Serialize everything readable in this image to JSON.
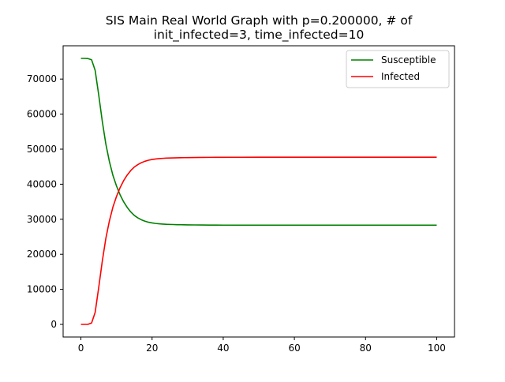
{
  "chart_data": {
    "type": "line",
    "title_line1": "SIS Main Real World Graph with p=0.200000, # of",
    "title_line2": "init_infected=3, time_infected=10",
    "xlabel": "",
    "ylabel": "",
    "xlim": [
      -5,
      105
    ],
    "ylim": [
      -3600,
      79500
    ],
    "xticks": [
      0,
      20,
      40,
      60,
      80,
      100
    ],
    "yticks": [
      0,
      10000,
      20000,
      30000,
      40000,
      50000,
      60000,
      70000
    ],
    "grid": false,
    "legend_position": "top-right",
    "x": [
      0,
      1,
      2,
      3,
      4,
      5,
      6,
      7,
      8,
      9,
      10,
      11,
      12,
      13,
      14,
      15,
      16,
      17,
      18,
      19,
      20,
      21,
      22,
      23,
      24,
      25,
      26,
      27,
      28,
      29,
      30,
      32,
      34,
      36,
      38,
      40,
      45,
      50,
      55,
      60,
      65,
      70,
      75,
      80,
      85,
      90,
      95,
      100
    ],
    "series": [
      {
        "name": "Susceptible",
        "color": "#008000",
        "values": [
          75900,
          75900,
          75850,
          75500,
          72500,
          65500,
          58000,
          51500,
          46500,
          42500,
          39500,
          37000,
          35000,
          33400,
          32100,
          31100,
          30400,
          29850,
          29450,
          29150,
          28950,
          28800,
          28700,
          28620,
          28560,
          28520,
          28490,
          28460,
          28440,
          28420,
          28400,
          28380,
          28360,
          28340,
          28330,
          28320,
          28310,
          28300,
          28300,
          28300,
          28300,
          28300,
          28300,
          28300,
          28300,
          28300,
          28300,
          28300
        ]
      },
      {
        "name": "Infected",
        "color": "#ff0000",
        "values": [
          3,
          5,
          20,
          400,
          3400,
          10500,
          18000,
          24500,
          29500,
          33500,
          36500,
          39000,
          41000,
          42600,
          43900,
          44900,
          45600,
          46150,
          46550,
          46850,
          47050,
          47200,
          47300,
          47380,
          47440,
          47480,
          47510,
          47540,
          47560,
          47580,
          47600,
          47620,
          47640,
          47660,
          47670,
          47680,
          47690,
          47700,
          47700,
          47700,
          47700,
          47700,
          47700,
          47700,
          47700,
          47700,
          47700,
          47700
        ]
      }
    ]
  }
}
